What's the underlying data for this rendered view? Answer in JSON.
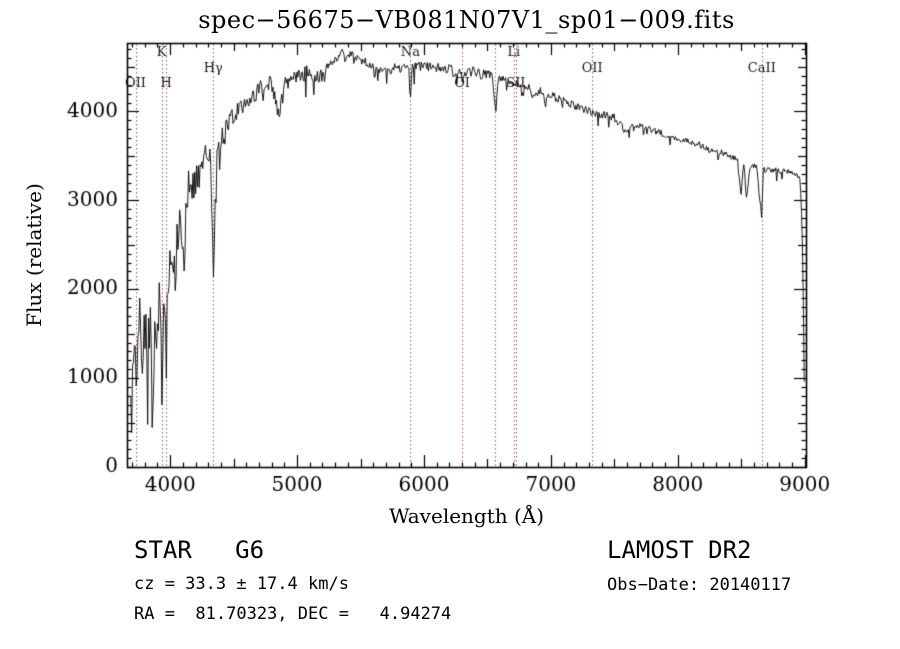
{
  "chart_data": {
    "type": "line",
    "title": "spec−56675−VB081N07V1_sp01−009.fits",
    "xlabel": "Wavelength (Å)",
    "ylabel": "Flux (relative)",
    "xlim": [
      3660,
      9010
    ],
    "ylim": [
      0,
      4770
    ],
    "x_ticks": [
      4000,
      5000,
      6000,
      7000,
      8000,
      9000
    ],
    "y_ticks": [
      0,
      1000,
      2000,
      3000,
      4000
    ],
    "grid": false,
    "line_color": "#000000",
    "marker_color": "#aa5555",
    "spectral_lines": [
      {
        "label": "OII",
        "wavelength": 3727,
        "row": 3
      },
      {
        "label": "K",
        "wavelength": 3933,
        "row": 1
      },
      {
        "label": "H",
        "wavelength": 3968,
        "row": 3
      },
      {
        "label": "Hγ",
        "wavelength": 4340,
        "row": 2
      },
      {
        "label": "Na",
        "wavelength": 5893,
        "row": 1
      },
      {
        "label": "OI",
        "wavelength": 6300,
        "row": 3
      },
      {
        "label": "",
        "wavelength": 6563,
        "row": 3
      },
      {
        "label": "Li",
        "wavelength": 6708,
        "row": 1
      },
      {
        "label": "SII",
        "wavelength": 6724,
        "row": 3
      },
      {
        "label": "OII",
        "wavelength": 7325,
        "row": 2
      },
      {
        "label": "CaII",
        "wavelength": 8662,
        "row": 2
      }
    ],
    "spectrum": {
      "x": [
        3690,
        3720,
        3740,
        3760,
        3780,
        3800,
        3820,
        3840,
        3860,
        3880,
        3900,
        3925,
        3933,
        3950,
        3968,
        3990,
        4010,
        4040,
        4070,
        4101,
        4130,
        4160,
        4200,
        4250,
        4290,
        4320,
        4340,
        4360,
        4400,
        4450,
        4500,
        4550,
        4600,
        4650,
        4700,
        4750,
        4800,
        4861,
        4900,
        4950,
        5000,
        5050,
        5100,
        5170,
        5200,
        5250,
        5300,
        5350,
        5400,
        5450,
        5500,
        5550,
        5600,
        5650,
        5700,
        5750,
        5800,
        5850,
        5882,
        5893,
        5904,
        5950,
        6000,
        6100,
        6200,
        6280,
        6300,
        6360,
        6450,
        6500,
        6540,
        6563,
        6590,
        6620,
        6700,
        6760,
        6820,
        6870,
        6920,
        7000,
        7100,
        7200,
        7300,
        7400,
        7500,
        7590,
        7650,
        7700,
        7800,
        7900,
        8000,
        8100,
        8200,
        8300,
        8400,
        8470,
        8498,
        8520,
        8542,
        8570,
        8620,
        8662,
        8675,
        8690,
        8750,
        8800,
        8850,
        8900,
        8940,
        8965,
        8985,
        9000
      ],
      "flux": [
        600,
        1500,
        900,
        1700,
        1200,
        1800,
        1000,
        1700,
        800,
        1900,
        1200,
        2100,
        900,
        2000,
        1300,
        2200,
        2500,
        2200,
        2800,
        2200,
        3000,
        3150,
        3200,
        3350,
        3500,
        3450,
        2050,
        3500,
        3700,
        3850,
        3950,
        4050,
        4100,
        4150,
        4250,
        4300,
        4300,
        3950,
        4300,
        4350,
        4400,
        4420,
        4450,
        4350,
        4420,
        4500,
        4600,
        4650,
        4620,
        4650,
        4600,
        4550,
        4500,
        4480,
        4450,
        4480,
        4500,
        4480,
        4470,
        4050,
        4470,
        4500,
        4520,
        4500,
        4480,
        4440,
        4380,
        4450,
        4420,
        4400,
        4400,
        3960,
        4380,
        4380,
        4320,
        4300,
        4280,
        4150,
        4230,
        4180,
        4120,
        4060,
        4000,
        3970,
        3930,
        3780,
        3860,
        3840,
        3790,
        3740,
        3700,
        3650,
        3610,
        3560,
        3510,
        3460,
        3050,
        3420,
        3000,
        3400,
        3380,
        2800,
        3380,
        3360,
        3340,
        3330,
        3320,
        3310,
        3290,
        3250,
        2400,
        450
      ]
    },
    "noise": [
      {
        "until": 3995,
        "amp": 480
      },
      {
        "until": 4150,
        "amp": 280
      },
      {
        "until": 4450,
        "amp": 170
      },
      {
        "until": 5200,
        "amp": 95
      },
      {
        "until": 6600,
        "amp": 60
      },
      {
        "until": 7600,
        "amp": 45
      },
      {
        "until": 9010,
        "amp": 35
      }
    ]
  },
  "annotations": {
    "class_label": "STAR   G6",
    "survey": "LAMOST DR2",
    "cz": "cz = 33.3 ± 17.4 km/s",
    "obs_date": "Obs−Date: 20140117",
    "coords": "RA =  81.70323, DEC =   4.94274"
  }
}
